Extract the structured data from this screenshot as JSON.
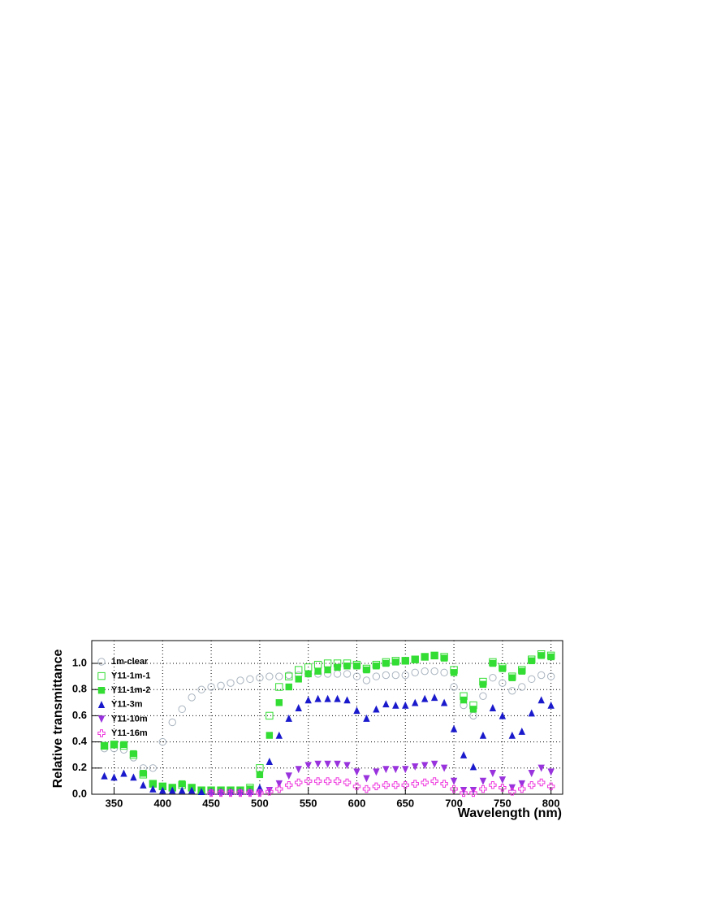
{
  "chart_data": {
    "type": "scatter",
    "x_label": "Wavelength (nm)",
    "y_label": "Relative transmittance",
    "x": [
      340,
      350,
      360,
      370,
      380,
      390,
      400,
      410,
      420,
      430,
      440,
      450,
      460,
      470,
      480,
      490,
      500,
      510,
      520,
      530,
      540,
      550,
      560,
      570,
      580,
      590,
      600,
      610,
      620,
      630,
      640,
      650,
      660,
      670,
      680,
      690,
      700,
      710,
      720,
      730,
      740,
      750,
      760,
      770,
      780,
      790,
      800
    ],
    "xlim": [
      327,
      812
    ],
    "xticks": [
      350,
      400,
      450,
      500,
      550,
      600,
      650,
      700,
      750,
      800
    ],
    "ylim": [
      0,
      1.174
    ],
    "yticks": [
      {
        "value": 0,
        "label": "0.0"
      },
      0.2,
      0.4,
      0.6,
      0.8,
      {
        "value": 1,
        "label": "1.0"
      }
    ],
    "grid": true,
    "legend": "top-left",
    "series": [
      {
        "name": "1m-clear",
        "color": "#a9b4bf",
        "marker": "open-circle",
        "values": [
          0.35,
          0.35,
          0.34,
          0.28,
          0.2,
          0.2,
          0.4,
          0.55,
          0.65,
          0.74,
          0.8,
          0.82,
          0.83,
          0.85,
          0.87,
          0.88,
          0.89,
          0.9,
          0.9,
          0.91,
          0.91,
          0.92,
          0.92,
          0.92,
          0.92,
          0.92,
          0.9,
          0.87,
          0.9,
          0.91,
          0.91,
          0.91,
          0.93,
          0.94,
          0.94,
          0.93,
          0.82,
          0.68,
          0.6,
          0.75,
          0.89,
          0.85,
          0.79,
          0.82,
          0.88,
          0.91,
          0.9
        ]
      },
      {
        "name": "Y11-1m-1",
        "color": "#33dd33",
        "marker": "open-square",
        "values": [
          0.37,
          0.38,
          0.37,
          0.3,
          0.15,
          0.08,
          0.06,
          0.05,
          0.07,
          0.05,
          0.03,
          0.03,
          0.03,
          0.03,
          0.03,
          0.05,
          0.2,
          0.6,
          0.82,
          0.9,
          0.95,
          0.97,
          0.99,
          1.0,
          1.0,
          1.0,
          0.99,
          0.96,
          0.99,
          1.01,
          1.02,
          1.02,
          1.03,
          1.05,
          1.06,
          1.05,
          0.95,
          0.75,
          0.68,
          0.86,
          1.01,
          0.97,
          0.9,
          0.95,
          1.03,
          1.07,
          1.06
        ]
      },
      {
        "name": "Y11-1m-2",
        "color": "#33dd33",
        "marker": "filled-square",
        "values": [
          0.37,
          0.38,
          0.38,
          0.31,
          0.16,
          0.08,
          0.06,
          0.05,
          0.08,
          0.05,
          0.03,
          0.03,
          0.03,
          0.03,
          0.03,
          0.04,
          0.15,
          0.45,
          0.7,
          0.82,
          0.88,
          0.92,
          0.94,
          0.95,
          0.97,
          0.98,
          0.98,
          0.95,
          0.98,
          1.0,
          1.01,
          1.02,
          1.03,
          1.05,
          1.06,
          1.04,
          0.93,
          0.72,
          0.65,
          0.84,
          1.0,
          0.96,
          0.89,
          0.94,
          1.02,
          1.06,
          1.05
        ]
      },
      {
        "name": "Y11-3m",
        "color": "#1a1acc",
        "marker": "triangle-up",
        "values": [
          0.14,
          0.13,
          0.16,
          0.13,
          0.07,
          0.04,
          0.03,
          0.03,
          0.03,
          0.03,
          0.02,
          0.02,
          0.02,
          0.02,
          0.02,
          0.02,
          0.05,
          0.25,
          0.45,
          0.58,
          0.66,
          0.72,
          0.73,
          0.73,
          0.73,
          0.72,
          0.64,
          0.58,
          0.65,
          0.69,
          0.68,
          0.68,
          0.7,
          0.73,
          0.74,
          0.7,
          0.5,
          0.3,
          0.21,
          0.45,
          0.66,
          0.6,
          0.45,
          0.48,
          0.62,
          0.72,
          0.68
        ]
      },
      {
        "name": "Y11-10m",
        "color": "#9933dd",
        "marker": "triangle-down",
        "values": [
          null,
          null,
          null,
          null,
          null,
          null,
          null,
          null,
          null,
          null,
          null,
          0.01,
          0.01,
          0.01,
          0.01,
          0.01,
          0.01,
          0.03,
          0.08,
          0.14,
          0.19,
          0.22,
          0.23,
          0.23,
          0.23,
          0.22,
          0.17,
          0.12,
          0.17,
          0.19,
          0.19,
          0.19,
          0.21,
          0.22,
          0.23,
          0.2,
          0.1,
          0.03,
          0.03,
          0.1,
          0.16,
          0.11,
          0.05,
          0.08,
          0.16,
          0.2,
          0.17
        ]
      },
      {
        "name": "Y11-16m",
        "color": "#ee33dd",
        "marker": "open-cross",
        "values": [
          null,
          null,
          null,
          null,
          null,
          null,
          null,
          null,
          null,
          null,
          null,
          0.01,
          0.01,
          0.01,
          0.01,
          0.01,
          0.01,
          0.02,
          0.04,
          0.07,
          0.09,
          0.1,
          0.1,
          0.1,
          0.1,
          0.09,
          0.06,
          0.04,
          0.06,
          0.07,
          0.07,
          0.07,
          0.08,
          0.09,
          0.1,
          0.08,
          0.04,
          0.01,
          0.01,
          0.04,
          0.07,
          0.05,
          0.02,
          0.04,
          0.07,
          0.09,
          0.06
        ]
      }
    ]
  }
}
